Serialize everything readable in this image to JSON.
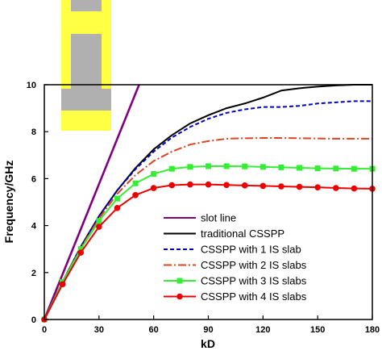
{
  "chart_data": {
    "type": "line",
    "title": "",
    "xlabel": "kD",
    "ylabel": "Frequency/GHz",
    "xlim": [
      0,
      180
    ],
    "ylim": [
      0,
      10
    ],
    "xticks": [
      "0",
      "30",
      "60",
      "90",
      "120",
      "150",
      "180"
    ],
    "yticks": [
      "0",
      "2",
      "4",
      "6",
      "8",
      "10"
    ],
    "legend_position": "bottom-right",
    "grid": false,
    "series": [
      {
        "name": "slot line",
        "color": "#800080",
        "style": "solid",
        "marker": "none",
        "x": [
          0,
          52
        ],
        "y": [
          0,
          10
        ]
      },
      {
        "name": "traditional CSSPP",
        "color": "#000000",
        "style": "solid",
        "marker": "none",
        "x": [
          0,
          10,
          20,
          30,
          40,
          50,
          60,
          70,
          80,
          90,
          100,
          110,
          120,
          130,
          140,
          150,
          160,
          170,
          180
        ],
        "y": [
          0,
          1.6,
          3.1,
          4.4,
          5.5,
          6.45,
          7.25,
          7.85,
          8.35,
          8.7,
          9.0,
          9.2,
          9.45,
          9.75,
          9.85,
          9.92,
          9.97,
          10.0,
          10.0
        ]
      },
      {
        "name": "CSSPP with 1 IS slab",
        "color": "#0000cc",
        "style": "dashed",
        "marker": "none",
        "x": [
          0,
          10,
          20,
          30,
          40,
          50,
          60,
          70,
          80,
          90,
          100,
          110,
          120,
          130,
          140,
          150,
          160,
          170,
          180
        ],
        "y": [
          0,
          1.6,
          3.1,
          4.4,
          5.5,
          6.4,
          7.15,
          7.75,
          8.2,
          8.55,
          8.8,
          8.95,
          9.05,
          9.05,
          9.1,
          9.2,
          9.25,
          9.3,
          9.3
        ]
      },
      {
        "name": "CSSPP with 2 IS slabs",
        "color": "#dd4422",
        "style": "dashdot",
        "marker": "none",
        "x": [
          0,
          10,
          20,
          30,
          40,
          50,
          60,
          70,
          80,
          90,
          100,
          110,
          120,
          130,
          140,
          150,
          160,
          170,
          180
        ],
        "y": [
          0,
          1.6,
          3.05,
          4.3,
          5.35,
          6.15,
          6.75,
          7.15,
          7.45,
          7.6,
          7.7,
          7.72,
          7.73,
          7.73,
          7.72,
          7.71,
          7.7,
          7.7,
          7.7
        ]
      },
      {
        "name": "CSSPP with 3 IS slabs",
        "color": "#33ee33",
        "style": "solid",
        "marker": "square",
        "x": [
          0,
          10,
          20,
          30,
          40,
          50,
          60,
          70,
          80,
          90,
          100,
          110,
          120,
          130,
          140,
          150,
          160,
          170,
          180
        ],
        "y": [
          0,
          1.6,
          3.0,
          4.2,
          5.15,
          5.8,
          6.2,
          6.42,
          6.5,
          6.53,
          6.53,
          6.52,
          6.5,
          6.48,
          6.46,
          6.44,
          6.43,
          6.42,
          6.42
        ]
      },
      {
        "name": "CSSPP with 4 IS slabs",
        "color": "#ee0000",
        "style": "solid",
        "marker": "circle",
        "x": [
          0,
          10,
          20,
          30,
          40,
          50,
          60,
          70,
          80,
          90,
          100,
          110,
          120,
          130,
          140,
          150,
          160,
          170,
          180
        ],
        "y": [
          0,
          1.5,
          2.85,
          3.95,
          4.75,
          5.3,
          5.6,
          5.72,
          5.75,
          5.75,
          5.73,
          5.71,
          5.69,
          5.67,
          5.65,
          5.63,
          5.6,
          5.58,
          5.57
        ]
      }
    ],
    "inset": {
      "description_colors": {
        "outer": "#ffff44",
        "border": "#ddcc00",
        "metal": "#b0b0b0"
      }
    }
  }
}
